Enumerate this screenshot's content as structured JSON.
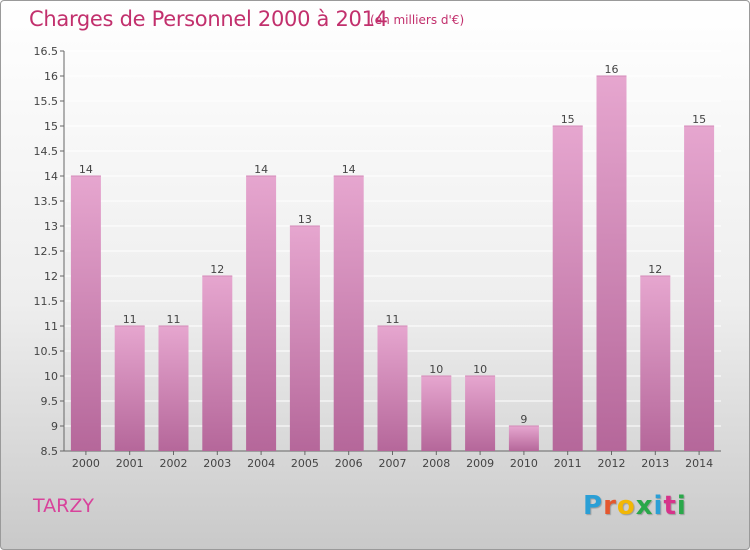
{
  "title": "Charges de Personnel 2000 à 2014",
  "subtitle": "(en milliers d'€)",
  "commune": "TARZY",
  "logo": {
    "letters": [
      "P",
      "r",
      "o",
      "x",
      "i",
      "t",
      "i"
    ],
    "colors": [
      "#2a9fd6",
      "#e4572e",
      "#f2b705",
      "#2aa84a",
      "#2a9fd6",
      "#d6338a",
      "#2aa84a"
    ]
  },
  "colors": {
    "bar_top": "#e6a6cf",
    "bar_bottom": "#b5679a",
    "title": "#c2306d"
  },
  "chart_data": {
    "type": "bar",
    "title": "Charges de Personnel 2000 à 2014",
    "subtitle": "(en milliers d'€)",
    "categories": [
      "2000",
      "2001",
      "2002",
      "2003",
      "2004",
      "2005",
      "2006",
      "2007",
      "2008",
      "2009",
      "2010",
      "2011",
      "2012",
      "2013",
      "2014"
    ],
    "values": [
      14,
      11,
      11,
      12,
      14,
      13,
      14,
      11,
      10,
      10,
      9,
      15,
      16,
      12,
      15
    ],
    "ylim": [
      8.5,
      16.5
    ],
    "yticks": [
      "8.5",
      "9",
      "9.5",
      "10",
      "10.5",
      "11",
      "11.5",
      "12",
      "12.5",
      "13",
      "13.5",
      "14",
      "14.5",
      "15",
      "15.5",
      "16",
      "16.5"
    ],
    "grid": true,
    "xlabel": "",
    "ylabel": ""
  }
}
